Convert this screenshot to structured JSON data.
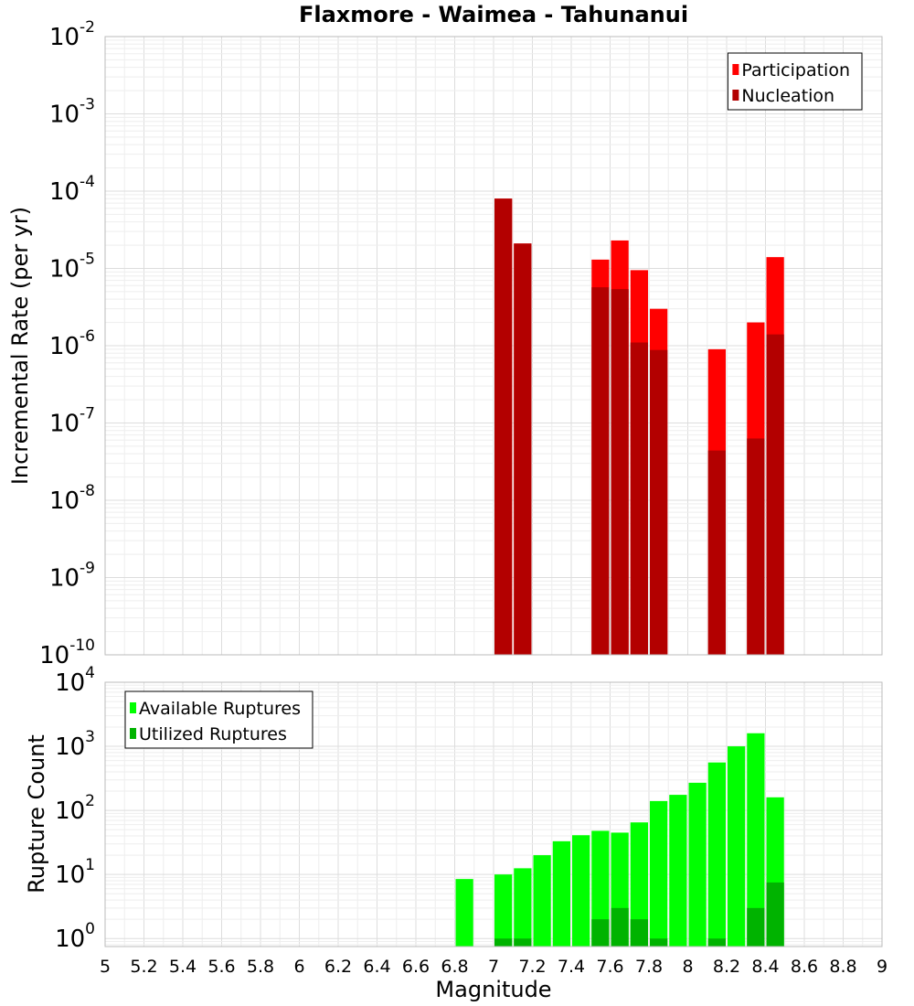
{
  "colors": {
    "participation": "#ff0000",
    "nucleation": "#b30000",
    "available": "#00ff00",
    "utilized": "#00b300",
    "grid_major": "#dddddd",
    "grid_minor": "#eeeeee",
    "frame": "#bbbbbb"
  },
  "chart_data": [
    {
      "type": "bar",
      "title": "Flaxmore - Waimea - Tahunanui",
      "xlabel": "",
      "ylabel": "Incremental Rate (per yr)",
      "yscale": "log",
      "xlim": [
        5,
        9
      ],
      "ylim": [
        1e-10,
        0.01
      ],
      "ytick_exponents": [
        "-10",
        "-9",
        "-8",
        "-7",
        "-6",
        "-5",
        "-4",
        "-3",
        "-2"
      ],
      "grid": true,
      "legend_position": "top-right",
      "bin_width": 0.1,
      "series": [
        {
          "name": "Participation",
          "color_key": "participation",
          "points": [
            {
              "x": 7.05,
              "y": 8e-05
            },
            {
              "x": 7.15,
              "y": 2.1e-05
            },
            {
              "x": 7.55,
              "y": 1.3e-05
            },
            {
              "x": 7.65,
              "y": 2.3e-05
            },
            {
              "x": 7.75,
              "y": 9.5e-06
            },
            {
              "x": 7.85,
              "y": 3e-06
            },
            {
              "x": 8.15,
              "y": 9e-07
            },
            {
              "x": 8.35,
              "y": 2e-06
            },
            {
              "x": 8.45,
              "y": 1.4e-05
            }
          ]
        },
        {
          "name": "Nucleation",
          "color_key": "nucleation",
          "points": [
            {
              "x": 7.05,
              "y": 8e-05
            },
            {
              "x": 7.15,
              "y": 2.1e-05
            },
            {
              "x": 7.55,
              "y": 5.7e-06
            },
            {
              "x": 7.65,
              "y": 5.4e-06
            },
            {
              "x": 7.75,
              "y": 1.1e-06
            },
            {
              "x": 7.85,
              "y": 8.8e-07
            },
            {
              "x": 8.15,
              "y": 4.4e-08
            },
            {
              "x": 8.35,
              "y": 6.3e-08
            },
            {
              "x": 8.45,
              "y": 1.4e-06
            }
          ]
        }
      ]
    },
    {
      "type": "bar",
      "title": "",
      "xlabel": "Magnitude",
      "ylabel": "Rupture Count",
      "yscale": "log",
      "xlim": [
        5,
        9
      ],
      "ylim": [
        0.75,
        10000
      ],
      "ytick_exponents": [
        "0",
        "1",
        "2",
        "3",
        "4"
      ],
      "xticks": [
        "5",
        "5.2",
        "5.4",
        "5.6",
        "5.8",
        "6",
        "6.2",
        "6.4",
        "6.6",
        "6.8",
        "7",
        "7.2",
        "7.4",
        "7.6",
        "7.8",
        "8",
        "8.2",
        "8.4",
        "8.6",
        "8.8",
        "9"
      ],
      "grid": true,
      "legend_position": "top-left",
      "bin_width": 0.1,
      "series": [
        {
          "name": "Available Ruptures",
          "color_key": "available",
          "points": [
            {
              "x": 6.85,
              "y": 8.5
            },
            {
              "x": 7.05,
              "y": 10
            },
            {
              "x": 7.15,
              "y": 12.5
            },
            {
              "x": 7.25,
              "y": 20
            },
            {
              "x": 7.35,
              "y": 33
            },
            {
              "x": 7.45,
              "y": 41
            },
            {
              "x": 7.55,
              "y": 48
            },
            {
              "x": 7.65,
              "y": 45
            },
            {
              "x": 7.75,
              "y": 65
            },
            {
              "x": 7.85,
              "y": 140
            },
            {
              "x": 7.95,
              "y": 175
            },
            {
              "x": 8.05,
              "y": 270
            },
            {
              "x": 8.15,
              "y": 560
            },
            {
              "x": 8.25,
              "y": 1000
            },
            {
              "x": 8.35,
              "y": 1600
            },
            {
              "x": 8.45,
              "y": 160
            }
          ]
        },
        {
          "name": "Utilized Ruptures",
          "color_key": "utilized",
          "points": [
            {
              "x": 7.05,
              "y": 1
            },
            {
              "x": 7.15,
              "y": 1
            },
            {
              "x": 7.55,
              "y": 2
            },
            {
              "x": 7.65,
              "y": 3
            },
            {
              "x": 7.75,
              "y": 2
            },
            {
              "x": 7.85,
              "y": 1
            },
            {
              "x": 8.15,
              "y": 1
            },
            {
              "x": 8.35,
              "y": 3
            },
            {
              "x": 8.45,
              "y": 7.5
            }
          ]
        }
      ]
    }
  ]
}
